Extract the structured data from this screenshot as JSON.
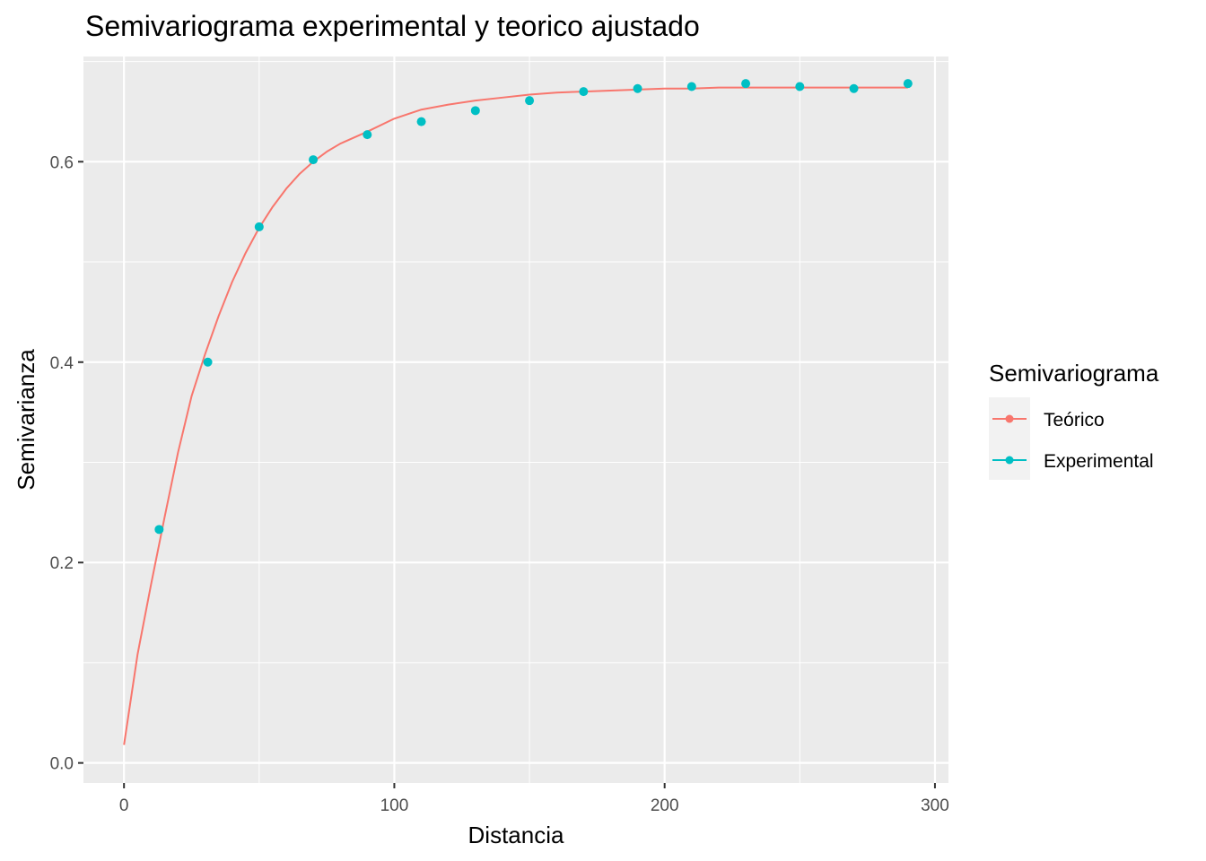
{
  "chart_data": {
    "type": "scatter",
    "title": "Semivariograma experimental y teorico ajustado",
    "xlabel": "Distancia",
    "ylabel": "Semivarianza",
    "xlim": [
      -15,
      305
    ],
    "ylim": [
      -0.02,
      0.705
    ],
    "x_ticks": [
      0,
      100,
      200,
      300
    ],
    "x_tick_labels": [
      "0",
      "100",
      "200",
      "300"
    ],
    "y_ticks": [
      0.0,
      0.2,
      0.4,
      0.6
    ],
    "y_tick_labels": [
      "0.0",
      "0.2",
      "0.4",
      "0.6"
    ],
    "grid": true,
    "legend": {
      "title": "Semivariograma",
      "position": "right",
      "entries": [
        {
          "label": "Teórico",
          "color": "#F8766D"
        },
        {
          "label": "Experimental",
          "color": "#00BFC4"
        }
      ]
    },
    "series": [
      {
        "name": "Teórico",
        "type": "line",
        "color": "#F8766D",
        "x": [
          0,
          5,
          10,
          15,
          20,
          25,
          30,
          35,
          40,
          45,
          50,
          55,
          60,
          65,
          70,
          75,
          80,
          90,
          100,
          110,
          120,
          130,
          140,
          150,
          160,
          170,
          180,
          190,
          200,
          210,
          220,
          230,
          240,
          250,
          260,
          270,
          280,
          290
        ],
        "y": [
          0.018,
          0.108,
          0.178,
          0.245,
          0.31,
          0.366,
          0.408,
          0.446,
          0.48,
          0.509,
          0.534,
          0.555,
          0.573,
          0.588,
          0.6,
          0.61,
          0.618,
          0.63,
          0.643,
          0.652,
          0.657,
          0.661,
          0.664,
          0.667,
          0.669,
          0.67,
          0.671,
          0.672,
          0.673,
          0.673,
          0.674,
          0.674,
          0.674,
          0.674,
          0.674,
          0.674,
          0.674,
          0.674
        ]
      },
      {
        "name": "Experimental",
        "type": "scatter",
        "color": "#00BFC4",
        "x": [
          13,
          31,
          50,
          70,
          90,
          110,
          130,
          150,
          170,
          190,
          210,
          230,
          250,
          270,
          290
        ],
        "y": [
          0.233,
          0.4,
          0.535,
          0.602,
          0.627,
          0.64,
          0.651,
          0.661,
          0.67,
          0.673,
          0.675,
          0.678,
          0.675,
          0.673,
          0.678
        ]
      }
    ]
  }
}
